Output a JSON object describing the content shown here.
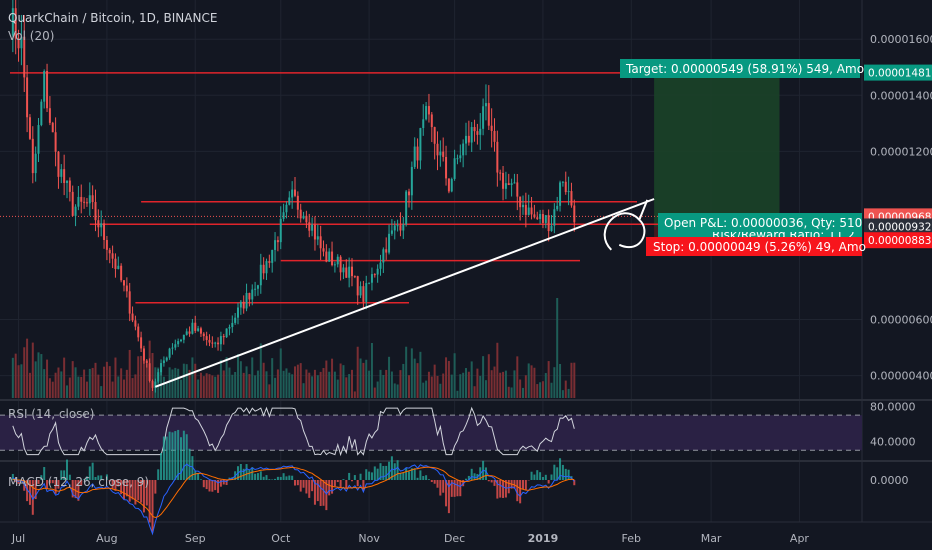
{
  "header": {
    "symbol_title": "QuarkChain / Bitcoin, 1D, BINANCE",
    "volume_label": "Vol (20)"
  },
  "colors": {
    "background": "#131722",
    "bullish": "#26a69a",
    "bearish": "#ef5350",
    "level_line": "#e0242b",
    "trendline": "#ffffff",
    "target_zone": "#1b4228",
    "target_label": "#089981",
    "stop_label": "#f7151c",
    "rsi_band": "#2a2144",
    "rsi_line": "#d1d4dc",
    "macd_line": "#2962ff",
    "signal_line": "#ff6d00",
    "grid": "#1f2430"
  },
  "price_axis": {
    "ticks": [
      "0.00001600",
      "0.00001400",
      "0.00001200",
      "0.00000600",
      "0.00000400"
    ],
    "tick_values": [
      1.6e-05,
      1.4e-05,
      1.2e-05,
      6e-06,
      4e-06
    ]
  },
  "price_markers": {
    "target": {
      "label": "0.00001481",
      "value": 1.481e-05
    },
    "current": {
      "label": "0.00000968",
      "value": 9.68e-06
    },
    "entry": {
      "label": "0.00000932",
      "value": 9.32e-06
    },
    "stop": {
      "label": "0.00000883",
      "value": 8.83e-06
    }
  },
  "position_labels": {
    "target": "Target: 0.00000549 (58.91%) 549, Amo",
    "open_pnl": "Open P&L: 0.00000036, Qty: 510",
    "risk_reward": "Risk/Reward Ratio: 11.2",
    "stop": "Stop: 0.00000049 (5.26%) 49, Amo"
  },
  "time_axis": {
    "labels": [
      "Jul",
      "Aug",
      "Sep",
      "Oct",
      "Nov",
      "Dec",
      "2019",
      "Feb",
      "Mar",
      "Apr"
    ],
    "day_index": [
      3,
      34,
      65,
      95,
      126,
      156,
      187,
      218,
      246,
      277
    ]
  },
  "rsi": {
    "label": "RSI (14, close)",
    "ticks": [
      "80.0000",
      "40.0000"
    ],
    "tick_values": [
      80,
      40
    ],
    "overbought": 70,
    "oversold": 30
  },
  "macd": {
    "label": "MACD (12, 26, close, 9)",
    "ticks": [
      "0.0000"
    ]
  },
  "chart_data": {
    "type": "candlestick",
    "title": "QuarkChain / Bitcoin, 1D, BINANCE",
    "x_range": [
      "2018-06-28",
      "2019-04-28"
    ],
    "y_range": [
      3.2e-06,
      1.74e-05
    ],
    "price_anchors": [
      {
        "day": 0,
        "price": 1.68e-05
      },
      {
        "day": 4,
        "price": 1.58e-05
      },
      {
        "day": 8,
        "price": 1.1e-05
      },
      {
        "day": 12,
        "price": 1.45e-05
      },
      {
        "day": 16,
        "price": 1.18e-05
      },
      {
        "day": 22,
        "price": 1e-05
      },
      {
        "day": 28,
        "price": 1.01e-05
      },
      {
        "day": 35,
        "price": 8.5e-06
      },
      {
        "day": 41,
        "price": 6.8e-06
      },
      {
        "day": 46,
        "price": 5e-06
      },
      {
        "day": 50,
        "price": 3.6e-06
      },
      {
        "day": 56,
        "price": 5e-06
      },
      {
        "day": 64,
        "price": 5.7e-06
      },
      {
        "day": 72,
        "price": 5e-06
      },
      {
        "day": 82,
        "price": 6.6e-06
      },
      {
        "day": 90,
        "price": 8e-06
      },
      {
        "day": 99,
        "price": 1.03e-05
      },
      {
        "day": 104,
        "price": 9.8e-06
      },
      {
        "day": 110,
        "price": 8.3e-06
      },
      {
        "day": 118,
        "price": 7.8e-06
      },
      {
        "day": 124,
        "price": 6.8e-06
      },
      {
        "day": 132,
        "price": 8.7e-06
      },
      {
        "day": 138,
        "price": 9.7e-06
      },
      {
        "day": 142,
        "price": 1.18e-05
      },
      {
        "day": 146,
        "price": 1.31e-05
      },
      {
        "day": 150,
        "price": 1.21e-05
      },
      {
        "day": 154,
        "price": 1.08e-05
      },
      {
        "day": 158,
        "price": 1.2e-05
      },
      {
        "day": 163,
        "price": 1.28e-05
      },
      {
        "day": 167,
        "price": 1.32e-05
      },
      {
        "day": 172,
        "price": 1.11e-05
      },
      {
        "day": 178,
        "price": 1.04e-05
      },
      {
        "day": 184,
        "price": 9.6e-06
      },
      {
        "day": 190,
        "price": 9.5e-06
      },
      {
        "day": 194,
        "price": 1.11e-05
      },
      {
        "day": 198,
        "price": 9.8e-06
      }
    ],
    "volume_spikes": [
      {
        "day": 192,
        "relative": 1.0
      },
      {
        "day": 127,
        "relative": 0.55
      },
      {
        "day": 50,
        "relative": 0.45
      }
    ],
    "drawn_levels": [
      {
        "price": 1.48e-05,
        "from_day": 0,
        "to_day": 236
      },
      {
        "price": 1.02e-05,
        "from_day": 46,
        "to_day": 220
      },
      {
        "price": 9.4e-06,
        "from_day": 28,
        "to_day": 236
      },
      {
        "price": 8.1e-06,
        "from_day": 95,
        "to_day": 200
      },
      {
        "price": 6.6e-06,
        "from_day": 44,
        "to_day": 140
      }
    ],
    "trendline": {
      "start": {
        "day": 51,
        "price": 3.6e-06
      },
      "end": {
        "day": 226,
        "price": 1.03e-05
      }
    },
    "position": {
      "entry": 9.32e-06,
      "target": 1.481e-05,
      "stop": 8.83e-06,
      "start_day": 226,
      "end_day": 270
    }
  }
}
